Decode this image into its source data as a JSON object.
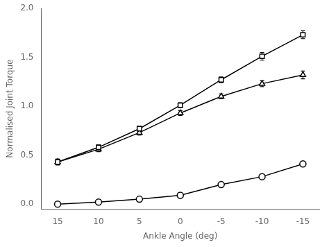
{
  "chart_data": {
    "type": "line",
    "xlabel": "Ankle Angle (deg)",
    "ylabel": "Normalised Joint Torque",
    "x": [
      15,
      10,
      5,
      0,
      -5,
      -10,
      -15
    ],
    "series": [
      {
        "color": "#000000",
        "marker": "square",
        "values": [
          0.43,
          0.58,
          0.77,
          1.01,
          1.27,
          1.51,
          1.73
        ],
        "errors": [
          0.03,
          0.025,
          0.025,
          0.025,
          0.03,
          0.04,
          0.04
        ]
      },
      {
        "color": "#000000",
        "marker": "triangle",
        "values": [
          0.43,
          0.56,
          0.73,
          0.93,
          1.1,
          1.23,
          1.32
        ],
        "errors": [
          0.03,
          0.025,
          0.025,
          0.025,
          0.025,
          0.03,
          0.04
        ]
      },
      {
        "color": "#000000",
        "marker": "circle",
        "values": [
          0.0,
          0.02,
          0.05,
          0.09,
          0.2,
          0.28,
          0.41
        ],
        "errors": [
          0.005,
          0.005,
          0.008,
          0.008,
          0.02,
          0.025,
          0.025
        ]
      }
    ],
    "xlim": [
      17,
      -17
    ],
    "ylim": [
      -0.05,
      2.0
    ],
    "xticks": [
      15,
      10,
      5,
      0,
      -5,
      -10,
      -15
    ],
    "yticks": [
      {
        "value": 0,
        "label": "0.0"
      },
      0.5,
      {
        "value": 1.0,
        "label": "1.0"
      },
      1.5,
      {
        "value": 2.0,
        "label": "2.0"
      }
    ],
    "grid": false
  }
}
